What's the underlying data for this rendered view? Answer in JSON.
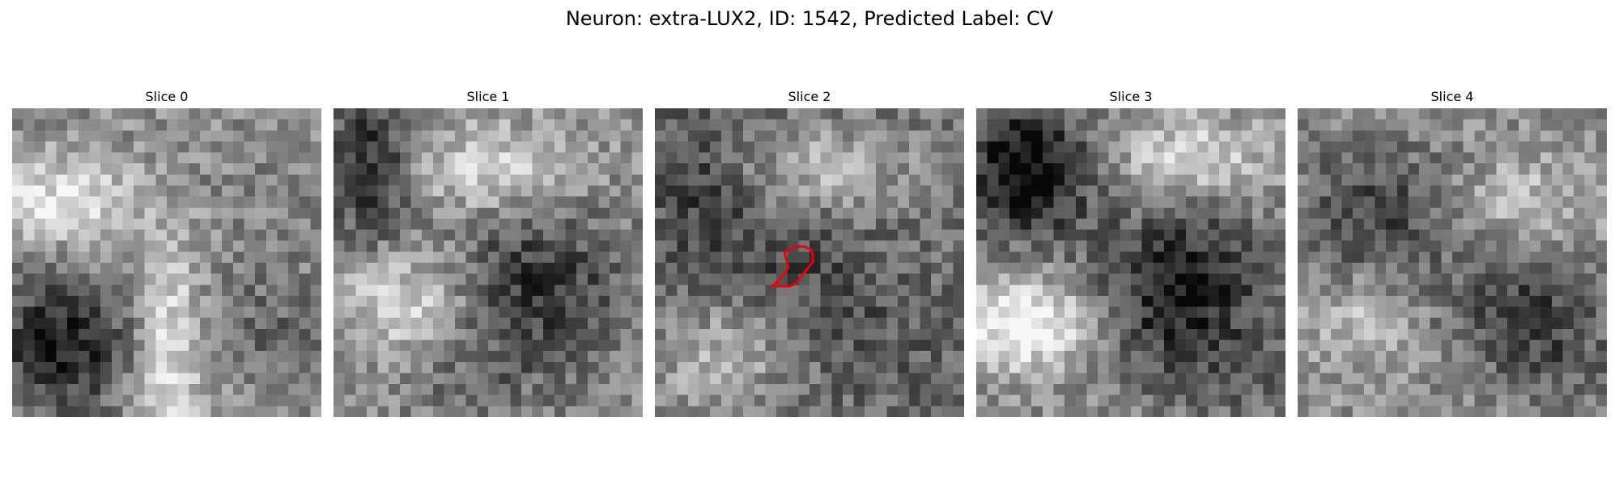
{
  "figure": {
    "title": "Neuron: extra-LUX2, ID: 1542, Predicted Label: CV"
  },
  "panels": [
    {
      "label": "Slice 0",
      "has_contour": false
    },
    {
      "label": "Slice 1",
      "has_contour": false
    },
    {
      "label": "Slice 2",
      "has_contour": true
    },
    {
      "label": "Slice 3",
      "has_contour": false
    },
    {
      "label": "Slice 4",
      "has_contour": false
    }
  ],
  "colors": {
    "contour": "#e8000b"
  }
}
